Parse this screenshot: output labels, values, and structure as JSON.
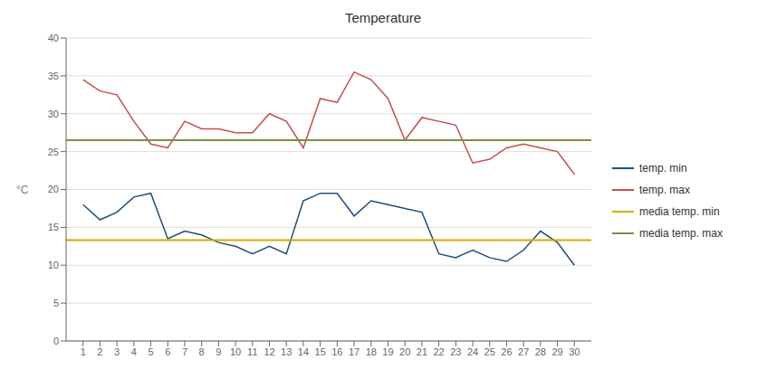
{
  "chart_data": {
    "type": "line",
    "title": "Temperature",
    "y_label": "°C",
    "x": [
      1,
      2,
      3,
      4,
      5,
      6,
      7,
      8,
      9,
      10,
      11,
      12,
      13,
      14,
      15,
      16,
      17,
      18,
      19,
      20,
      21,
      22,
      23,
      24,
      25,
      26,
      27,
      28,
      29,
      30
    ],
    "xlim": [
      0,
      31
    ],
    "xticks": [
      1,
      2,
      3,
      4,
      5,
      6,
      7,
      8,
      9,
      10,
      11,
      12,
      13,
      14,
      15,
      16,
      17,
      18,
      19,
      20,
      21,
      22,
      23,
      24,
      25,
      26,
      27,
      28,
      29,
      30
    ],
    "ylim": [
      0,
      40
    ],
    "yticks": [
      0,
      5,
      10,
      15,
      20,
      25,
      30,
      35,
      40
    ],
    "series": [
      {
        "name": "temp. min",
        "color": "#1f4e79",
        "values": [
          18,
          16,
          17,
          19,
          19.5,
          13.5,
          14.5,
          14,
          13,
          12.5,
          11.5,
          12.5,
          11.5,
          18.5,
          19.5,
          19.5,
          16.5,
          18.5,
          18,
          17.5,
          17,
          11.5,
          11,
          12,
          11,
          10.5,
          12,
          14.5,
          13,
          10
        ]
      },
      {
        "name": "temp. max",
        "color": "#c0504d",
        "values": [
          34.5,
          33,
          32.5,
          29,
          26,
          25.5,
          29,
          28,
          28,
          27.5,
          27.5,
          30,
          29,
          25.5,
          32,
          31.5,
          35.5,
          34.5,
          32,
          26.5,
          29.5,
          29,
          28.5,
          23.5,
          24,
          25.5,
          26,
          25.5,
          25,
          22
        ]
      }
    ],
    "hlines": [
      {
        "name": "media temp. min",
        "color": "#d4aa00",
        "value": 13.3
      },
      {
        "name": "media temp. max",
        "color": "#76933c",
        "value": 26.5
      }
    ],
    "grid": "y",
    "legend": "right"
  }
}
